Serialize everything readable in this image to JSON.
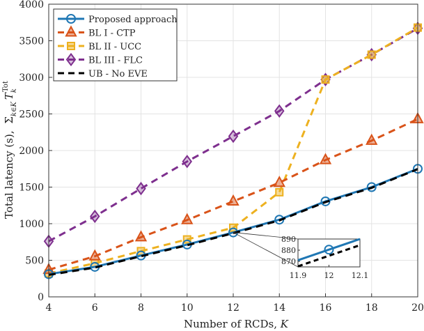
{
  "chart_data": {
    "type": "line",
    "title": "",
    "xlabel": "Number of RCDs, K",
    "ylabel": "Total latency (s), Σk∈K Tk^Tot",
    "ylabel_prefix": "Total latency (s),",
    "xlim": [
      4,
      20
    ],
    "ylim": [
      0,
      4000
    ],
    "xticks": [
      4,
      6,
      8,
      10,
      12,
      14,
      16,
      18,
      20
    ],
    "yticks": [
      0,
      500,
      1000,
      1500,
      2000,
      2500,
      3000,
      3500,
      4000
    ],
    "grid": true,
    "legend_position": "top-left",
    "x": [
      4,
      6,
      8,
      10,
      12,
      14,
      16,
      18,
      20
    ],
    "series": [
      {
        "name": "Proposed approach",
        "color": "#1f77b4",
        "dash": "solid",
        "marker": "circle",
        "values": [
          310,
          410,
          565,
          715,
          880,
          1055,
          1305,
          1500,
          1750
        ]
      },
      {
        "name": "BL I - CTP",
        "color": "#d95319",
        "dash": "dashed",
        "marker": "triangle",
        "values": [
          370,
          555,
          815,
          1050,
          1305,
          1560,
          1870,
          2135,
          2430
        ]
      },
      {
        "name": "BL II - UCC",
        "color": "#edb120",
        "dash": "dashed",
        "marker": "square",
        "values": [
          320,
          460,
          625,
          785,
          945,
          1430,
          2970,
          3310,
          3680
        ]
      },
      {
        "name": "BL III - FLC",
        "color": "#7e2f8e",
        "dash": "dashed",
        "marker": "diamond",
        "values": [
          760,
          1100,
          1480,
          1850,
          2195,
          2540,
          2970,
          3310,
          3670
        ]
      },
      {
        "name": "UB - No EVE",
        "color": "#000000",
        "dash": "dashed",
        "marker": "none",
        "values": [
          300,
          400,
          555,
          705,
          870,
          1045,
          1295,
          1490,
          1745
        ]
      }
    ],
    "inset": {
      "xlim": [
        11.9,
        12.1
      ],
      "ylim": [
        865,
        890
      ],
      "xticks": [
        11.9,
        12,
        12.1
      ],
      "yticks": [
        870,
        880,
        890
      ],
      "proposed": {
        "x": [
          11.9,
          12,
          12.1
        ],
        "y": [
          871,
          880.5,
          890
        ]
      },
      "ub": {
        "x": [
          11.9,
          12,
          12.1
        ],
        "y": [
          865.5,
          875,
          884.5
        ]
      },
      "marker_at": {
        "x": 12,
        "y": 880.5
      }
    }
  }
}
